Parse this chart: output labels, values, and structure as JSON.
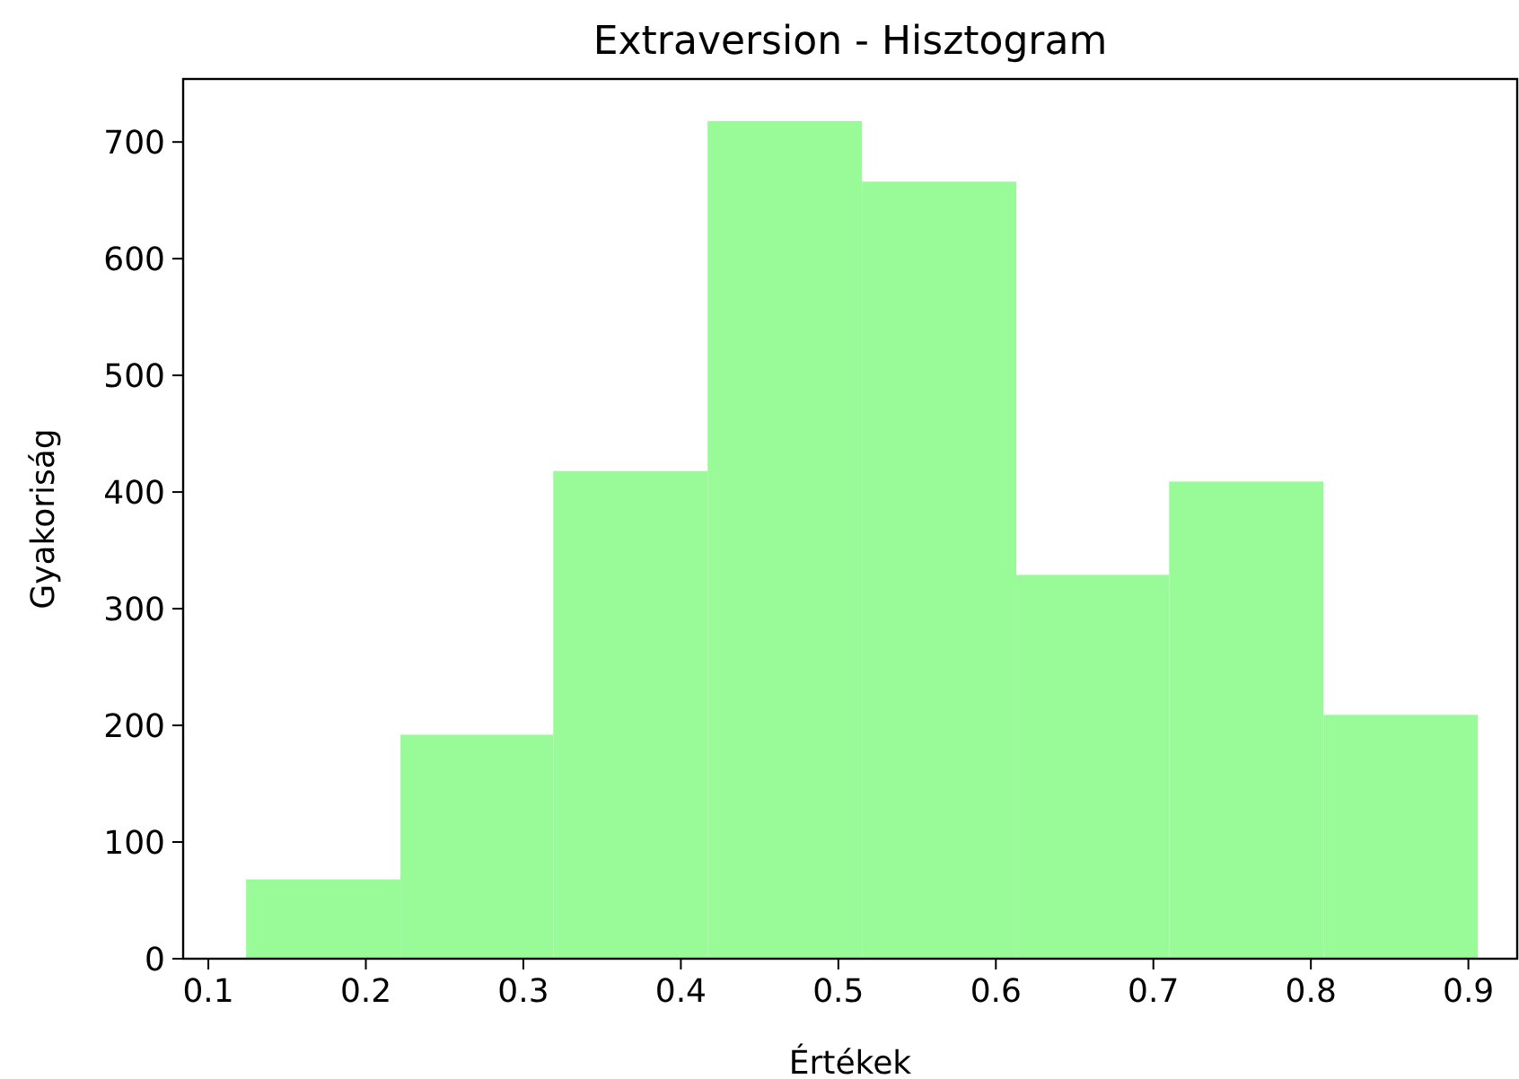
{
  "chart_data": {
    "type": "histogram",
    "title": "Extraversion - Hisztogram",
    "xlabel": "Értékek",
    "ylabel": "Gyakoriság",
    "bins": [
      0.124,
      0.222,
      0.319,
      0.417,
      0.515,
      0.613,
      0.71,
      0.808,
      0.906
    ],
    "values": [
      68,
      192,
      418,
      718,
      666,
      329,
      409,
      209
    ],
    "color": "#98fb98",
    "xlim": [
      0.084,
      0.931
    ],
    "xticks": [
      0.1,
      0.2,
      0.3,
      0.4,
      0.5,
      0.6,
      0.7,
      0.8,
      0.9
    ],
    "ylim": [
      0,
      754
    ],
    "yticks": [
      0,
      100,
      200,
      300,
      400,
      500,
      600,
      700
    ],
    "grid": false
  }
}
